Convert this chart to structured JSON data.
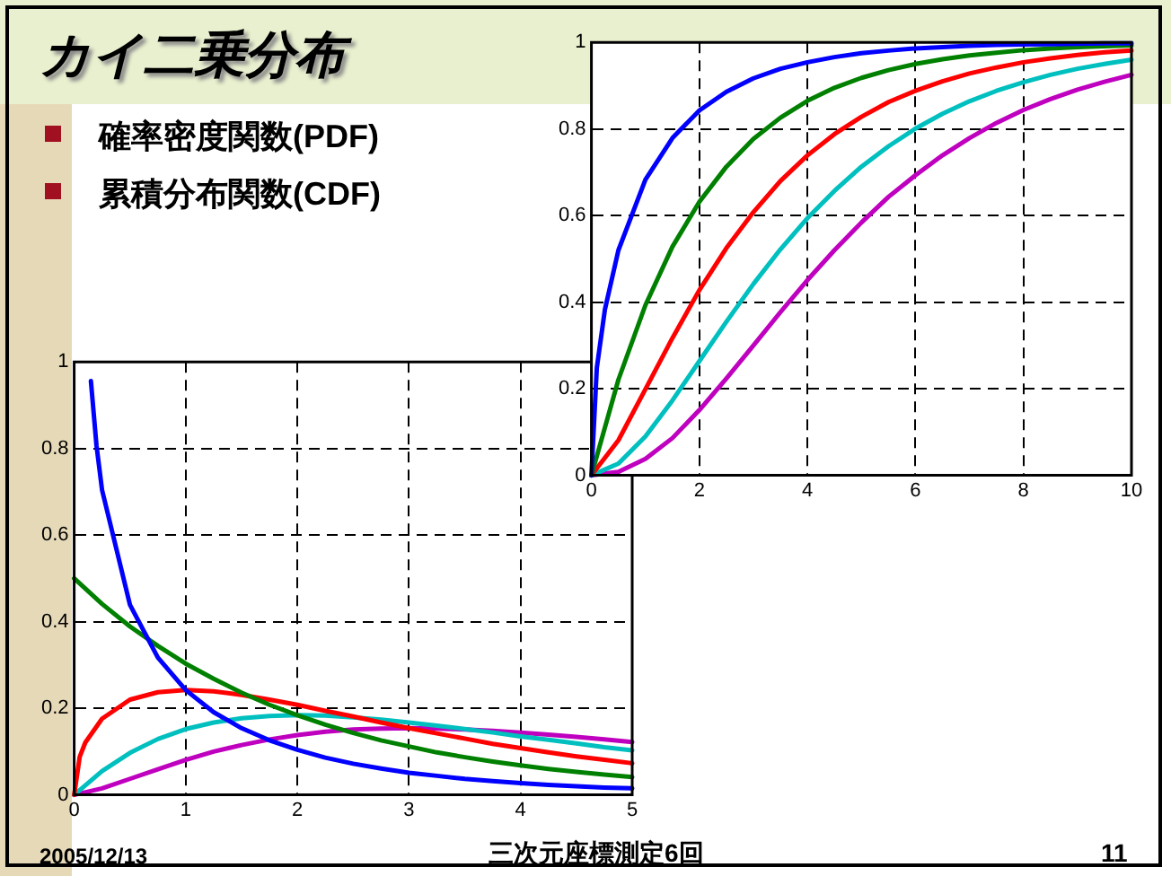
{
  "chart_data": [
    {
      "type": "line",
      "title": "カイ二乗分布",
      "annotations": [
        "確率密度関数(PDF)",
        "累積分布関数(CDF)",
        "2005/12/13",
        "三次元座標測定6回",
        "11"
      ],
      "xlim": [
        0,
        10
      ],
      "xticks": [
        0,
        2,
        4,
        6,
        8,
        10
      ],
      "ylim": [
        0,
        1
      ],
      "yticks": [
        0,
        0.2,
        0.4,
        0.6,
        0.8,
        1
      ],
      "grid": true,
      "marker": "none",
      "line_style": "solid",
      "series": [
        {
          "color": "#0000ff",
          "x": [
            0,
            0.1,
            0.25,
            0.5,
            1,
            1.5,
            2,
            2.5,
            3,
            3.5,
            4,
            4.5,
            5,
            5.5,
            6,
            6.5,
            7,
            7.5,
            8,
            8.5,
            9,
            9.5,
            10
          ],
          "values": [
            0,
            0.248,
            0.383,
            0.52,
            0.683,
            0.779,
            0.843,
            0.886,
            0.917,
            0.939,
            0.954,
            0.966,
            0.975,
            0.981,
            0.986,
            0.989,
            0.992,
            0.994,
            0.995,
            0.996,
            0.997,
            0.998,
            0.998
          ]
        },
        {
          "color": "#008000",
          "x": [
            0,
            0.5,
            1,
            1.5,
            2,
            2.5,
            3,
            3.5,
            4,
            4.5,
            5,
            5.5,
            6,
            6.5,
            7,
            7.5,
            8,
            8.5,
            9,
            9.5,
            10
          ],
          "values": [
            0,
            0.221,
            0.393,
            0.528,
            0.632,
            0.713,
            0.777,
            0.826,
            0.865,
            0.895,
            0.918,
            0.936,
            0.95,
            0.961,
            0.97,
            0.976,
            0.982,
            0.986,
            0.989,
            0.991,
            0.993
          ]
        },
        {
          "color": "#ff0000",
          "x": [
            0,
            0.5,
            1,
            1.5,
            2,
            2.5,
            3,
            3.5,
            4,
            4.5,
            5,
            5.5,
            6,
            6.5,
            7,
            7.5,
            8,
            8.5,
            9,
            9.5,
            10
          ],
          "values": [
            0,
            0.081,
            0.199,
            0.317,
            0.428,
            0.525,
            0.608,
            0.68,
            0.739,
            0.788,
            0.828,
            0.862,
            0.888,
            0.91,
            0.928,
            0.942,
            0.954,
            0.963,
            0.971,
            0.977,
            0.981
          ]
        },
        {
          "color": "#00bfbf",
          "x": [
            0,
            0.5,
            1,
            1.5,
            2,
            2.5,
            3,
            3.5,
            4,
            4.5,
            5,
            5.5,
            6,
            6.5,
            7,
            7.5,
            8,
            8.5,
            9,
            9.5,
            10
          ],
          "values": [
            0,
            0.027,
            0.09,
            0.173,
            0.264,
            0.355,
            0.442,
            0.522,
            0.594,
            0.657,
            0.713,
            0.76,
            0.801,
            0.835,
            0.864,
            0.888,
            0.908,
            0.925,
            0.939,
            0.95,
            0.96
          ]
        },
        {
          "color": "#bf00bf",
          "x": [
            0,
            0.5,
            1,
            1.5,
            2,
            2.5,
            3,
            3.5,
            4,
            4.5,
            5,
            5.5,
            6,
            6.5,
            7,
            7.5,
            8,
            8.5,
            9,
            9.5,
            10
          ],
          "values": [
            0,
            0.008,
            0.038,
            0.086,
            0.151,
            0.224,
            0.3,
            0.377,
            0.451,
            0.52,
            0.584,
            0.643,
            0.693,
            0.739,
            0.779,
            0.814,
            0.844,
            0.869,
            0.891,
            0.909,
            0.925
          ]
        }
      ]
    },
    {
      "type": "line",
      "xlim": [
        0,
        5
      ],
      "xticks": [
        0,
        1,
        2,
        3,
        4,
        5
      ],
      "ylim": [
        0,
        1
      ],
      "yticks": [
        0,
        0.2,
        0.4,
        0.6,
        0.8,
        1
      ],
      "grid": true,
      "marker": "none",
      "line_style": "solid",
      "series": [
        {
          "color": "#0000ff",
          "x": [
            0.15,
            0.2,
            0.25,
            0.5,
            0.75,
            1,
            1.25,
            1.5,
            1.75,
            2,
            2.25,
            2.5,
            2.75,
            3,
            3.25,
            3.5,
            3.75,
            4,
            4.25,
            4.5,
            4.75,
            5
          ],
          "values": [
            0.956,
            0.807,
            0.704,
            0.439,
            0.317,
            0.242,
            0.191,
            0.154,
            0.126,
            0.104,
            0.086,
            0.072,
            0.061,
            0.051,
            0.044,
            0.037,
            0.032,
            0.027,
            0.023,
            0.02,
            0.017,
            0.015
          ]
        },
        {
          "color": "#008000",
          "x": [
            0,
            0.25,
            0.5,
            0.75,
            1,
            1.25,
            1.5,
            1.75,
            2,
            2.25,
            2.5,
            2.75,
            3,
            3.25,
            3.5,
            3.75,
            4,
            4.25,
            4.5,
            4.75,
            5
          ],
          "values": [
            0.5,
            0.441,
            0.389,
            0.344,
            0.303,
            0.268,
            0.236,
            0.208,
            0.184,
            0.162,
            0.143,
            0.126,
            0.112,
            0.098,
            0.087,
            0.077,
            0.068,
            0.06,
            0.053,
            0.047,
            0.041
          ]
        },
        {
          "color": "#ff0000",
          "x": [
            0,
            0.05,
            0.1,
            0.25,
            0.5,
            0.75,
            1,
            1.25,
            1.5,
            1.75,
            2,
            2.25,
            2.5,
            2.75,
            3,
            3.25,
            3.5,
            3.75,
            4,
            4.25,
            4.5,
            4.75,
            5
          ],
          "values": [
            0,
            0.088,
            0.121,
            0.176,
            0.22,
            0.237,
            0.242,
            0.239,
            0.231,
            0.22,
            0.208,
            0.194,
            0.181,
            0.167,
            0.154,
            0.142,
            0.13,
            0.118,
            0.108,
            0.098,
            0.089,
            0.081,
            0.073
          ]
        },
        {
          "color": "#00bfbf",
          "x": [
            0,
            0.25,
            0.5,
            0.75,
            1,
            1.25,
            1.5,
            1.75,
            2,
            2.25,
            2.5,
            2.75,
            3,
            3.25,
            3.5,
            3.75,
            4,
            4.25,
            4.5,
            4.75,
            5
          ],
          "values": [
            0,
            0.055,
            0.097,
            0.129,
            0.152,
            0.167,
            0.177,
            0.182,
            0.184,
            0.183,
            0.179,
            0.174,
            0.167,
            0.16,
            0.152,
            0.144,
            0.135,
            0.127,
            0.119,
            0.11,
            0.103
          ]
        },
        {
          "color": "#bf00bf",
          "x": [
            0,
            0.25,
            0.5,
            0.75,
            1,
            1.25,
            1.5,
            1.75,
            2,
            2.25,
            2.5,
            2.75,
            3,
            3.25,
            3.5,
            3.75,
            4,
            4.25,
            4.5,
            4.75,
            5
          ],
          "values": [
            0,
            0.015,
            0.037,
            0.059,
            0.081,
            0.1,
            0.115,
            0.128,
            0.138,
            0.146,
            0.151,
            0.153,
            0.154,
            0.153,
            0.151,
            0.148,
            0.144,
            0.139,
            0.134,
            0.128,
            0.122
          ]
        }
      ]
    }
  ]
}
